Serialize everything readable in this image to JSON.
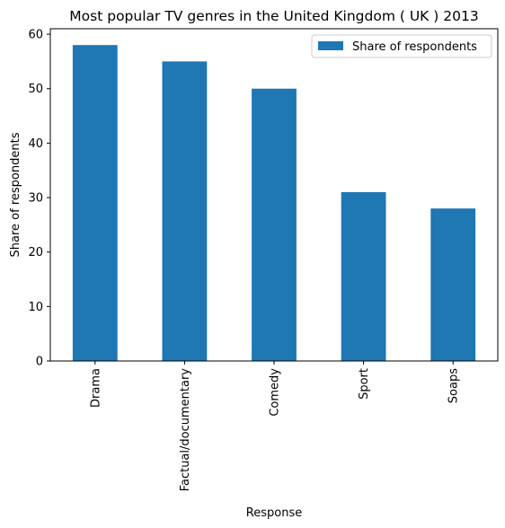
{
  "chart_data": {
    "type": "bar",
    "title": "Most popular TV genres in the United Kingdom ( UK ) 2013",
    "xlabel": "Response",
    "ylabel": "Share of respondents",
    "categories": [
      "Drama",
      "Factual/documentary",
      "Comedy",
      "Sport",
      "Soaps"
    ],
    "series": [
      {
        "name": "Share of respondents",
        "values": [
          58,
          55,
          50,
          31,
          28
        ]
      }
    ],
    "ylim": [
      0,
      61
    ],
    "yticks": [
      0,
      10,
      20,
      30,
      40,
      50,
      60
    ],
    "grid": false,
    "legend_position": "top-right",
    "colors": {
      "bar": "#1f77b4",
      "axis": "#000000",
      "legend_border": "#cccccc"
    }
  }
}
